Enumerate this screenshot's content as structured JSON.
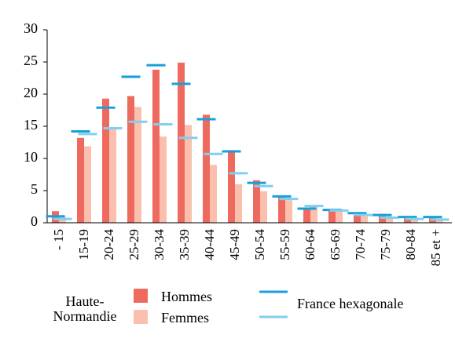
{
  "chart_data": {
    "type": "bar",
    "categories": [
      "- 15",
      "15-19",
      "20-24",
      "25-29",
      "30-34",
      "35-39",
      "40-44",
      "45-49",
      "50-54",
      "55-59",
      "60-64",
      "65-69",
      "70-74",
      "75-79",
      "80-84",
      "85 et +"
    ],
    "ylim": [
      0,
      30
    ],
    "yticks": [
      0,
      5,
      10,
      15,
      20,
      25,
      30
    ],
    "series_group": [
      "Haute-",
      "Normandie"
    ],
    "series": [
      {
        "name": "Hommes",
        "color": "#ef6a5e",
        "values": [
          1.8,
          13.2,
          19.3,
          19.7,
          23.8,
          24.9,
          16.8,
          11.3,
          6.6,
          4.2,
          2.3,
          2.0,
          1.2,
          1.4,
          1.0,
          0.9
        ]
      },
      {
        "name": "Femmes",
        "color": "#fbbfae",
        "values": [
          0.9,
          11.9,
          14.5,
          18.0,
          13.4,
          15.2,
          9.0,
          6.0,
          4.9,
          3.5,
          2.5,
          1.8,
          1.0,
          0.9,
          0.6,
          0.5
        ]
      }
    ],
    "reference": {
      "name": "France hexagonale",
      "series": [
        {
          "color": "#1aa0d8",
          "values": [
            1.0,
            14.2,
            17.9,
            22.7,
            24.5,
            21.6,
            16.1,
            11.1,
            6.2,
            4.1,
            2.2,
            2.0,
            1.5,
            1.2,
            0.9,
            0.9
          ]
        },
        {
          "color": "#7fd0ef",
          "values": [
            0.6,
            13.8,
            14.7,
            15.7,
            15.3,
            13.2,
            10.7,
            7.7,
            5.7,
            3.7,
            2.6,
            1.9,
            1.2,
            0.8,
            0.6,
            0.5
          ]
        }
      ]
    }
  }
}
